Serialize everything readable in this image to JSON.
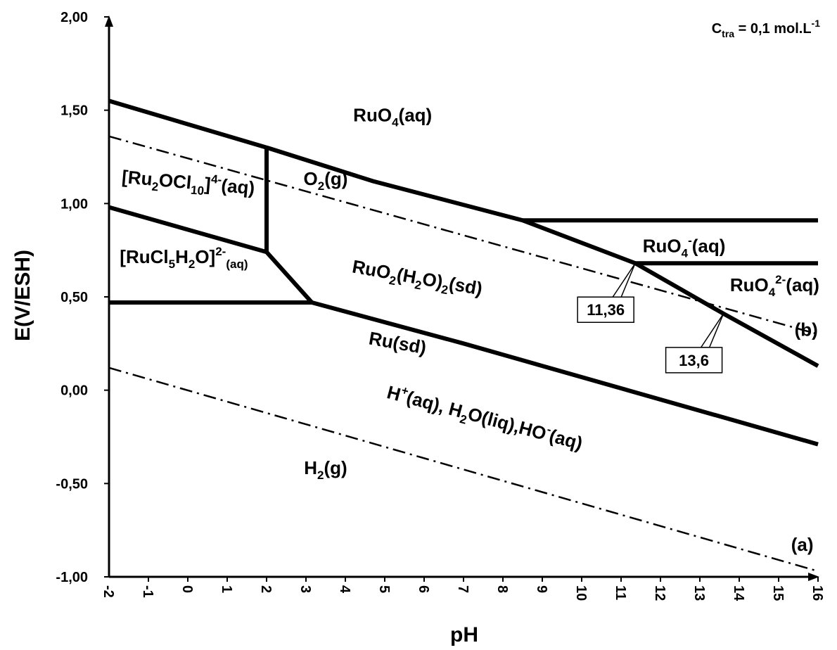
{
  "chart_data": {
    "type": "line",
    "title": "",
    "xlabel": "pH",
    "ylabel": "E(V/ESH)",
    "xlim": [
      -2,
      16
    ],
    "ylim": [
      -1.0,
      2.0
    ],
    "x_ticks": [
      "-2",
      "-1",
      "0",
      "1",
      "2",
      "3",
      "4",
      "5",
      "6",
      "7",
      "8",
      "9",
      "10",
      "11",
      "12",
      "13",
      "14",
      "15",
      "16"
    ],
    "y_ticks": [
      "-1,00",
      "-0,50",
      "0,00",
      "0,50",
      "1,00",
      "1,50",
      "2,00"
    ],
    "annotation": {
      "C": "C",
      "sub": "tra",
      "rest": " = 0,1 mol.L",
      "sup": "-1"
    },
    "series": [
      {
        "style": "solid",
        "points": [
          [
            -2,
            1.55
          ],
          [
            2,
            1.3
          ],
          [
            4.7,
            1.12
          ],
          [
            8.5,
            0.91
          ],
          [
            11.36,
            0.68
          ],
          [
            13.6,
            0.41
          ],
          [
            16,
            0.13
          ]
        ]
      },
      {
        "style": "solid",
        "points": [
          [
            8.5,
            0.91
          ],
          [
            16,
            0.91
          ]
        ]
      },
      {
        "style": "solid",
        "points": [
          [
            11.36,
            0.68
          ],
          [
            16,
            0.68
          ]
        ]
      },
      {
        "style": "solid",
        "points": [
          [
            2,
            1.3
          ],
          [
            2,
            0.74
          ]
        ]
      },
      {
        "style": "solid",
        "points": [
          [
            -2,
            0.98
          ],
          [
            2,
            0.74
          ],
          [
            3.15,
            0.47
          ]
        ]
      },
      {
        "style": "solid",
        "points": [
          [
            -2,
            0.47
          ],
          [
            3.15,
            0.47
          ]
        ]
      },
      {
        "style": "solid",
        "points": [
          [
            3.15,
            0.47
          ],
          [
            7,
            0.25
          ],
          [
            16,
            -0.29
          ]
        ]
      },
      {
        "style": "dashdot",
        "name": "(b)",
        "points": [
          [
            -2,
            1.36
          ],
          [
            16,
            0.3
          ]
        ]
      },
      {
        "style": "dashdot",
        "name": "(a)",
        "points": [
          [
            -2,
            0.12
          ],
          [
            16,
            -0.97
          ]
        ]
      }
    ],
    "callouts": [
      {
        "label": "11,36",
        "x": 11.36,
        "y": 0.68
      },
      {
        "label": "13,6",
        "x": 13.6,
        "y": 0.41
      }
    ],
    "region_labels": [
      {
        "parts": [
          [
            "RuO",
            ""
          ],
          [
            "4",
            "sub"
          ],
          [
            "(aq)",
            ""
          ]
        ],
        "x": 5.2,
        "y": 1.44
      },
      {
        "parts": [
          [
            "O",
            ""
          ],
          [
            "2",
            "sub"
          ],
          [
            "(g)",
            ""
          ]
        ],
        "x": 3.5,
        "y": 1.1
      },
      {
        "parts": [
          [
            "[Ru",
            ""
          ],
          [
            "2",
            "sub"
          ],
          [
            "OCl",
            ""
          ],
          [
            "10",
            "sub"
          ],
          [
            "]",
            ""
          ],
          [
            "4-",
            "sup"
          ],
          [
            "(aq)",
            ""
          ]
        ],
        "x": 0.0,
        "y": 1.08,
        "rotate": 5
      },
      {
        "parts": [
          [
            "[RuCl",
            ""
          ],
          [
            "5",
            "sub"
          ],
          [
            "H",
            ""
          ],
          [
            "2",
            "sub"
          ],
          [
            "O]",
            ""
          ],
          [
            "2-",
            "sup"
          ],
          [
            "(aq)",
            "sub"
          ]
        ],
        "x": -0.1,
        "y": 0.68
      },
      {
        "parts": [
          [
            "RuO",
            ""
          ],
          [
            "2",
            "sub"
          ],
          [
            "(H",
            ""
          ],
          [
            "2",
            "sub"
          ],
          [
            "O)",
            ""
          ],
          [
            "2",
            "sub"
          ],
          [
            "(sd)",
            ""
          ]
        ],
        "x": 5.8,
        "y": 0.57,
        "rotate": 10
      },
      {
        "parts": [
          [
            "Ru(sd)",
            ""
          ]
        ],
        "x": 5.3,
        "y": 0.22,
        "rotate": 10
      },
      {
        "parts": [
          [
            "H",
            ""
          ],
          [
            "+",
            "sup"
          ],
          [
            "(aq), H",
            ""
          ],
          [
            "2",
            "sub"
          ],
          [
            "O(liq),HO",
            ""
          ],
          [
            "-",
            "sup"
          ],
          [
            "(aq)",
            ""
          ]
        ],
        "x": 7.5,
        "y": -0.18,
        "rotate": 15
      },
      {
        "parts": [
          [
            "H",
            ""
          ],
          [
            "2",
            "sub"
          ],
          [
            "(g)",
            ""
          ]
        ],
        "x": 3.5,
        "y": -0.45
      },
      {
        "parts": [
          [
            "RuO",
            ""
          ],
          [
            "4",
            "sub"
          ],
          [
            "-",
            "sup"
          ],
          [
            "(aq)",
            ""
          ]
        ],
        "x": 12.6,
        "y": 0.74
      },
      {
        "parts": [
          [
            "RuO",
            ""
          ],
          [
            "4",
            "sub"
          ],
          [
            "2-",
            "sup"
          ],
          [
            "(aq)",
            ""
          ]
        ],
        "x": 14.9,
        "y": 0.53
      },
      {
        "parts": [
          [
            "(b)",
            ""
          ]
        ],
        "x": 15.7,
        "y": 0.29
      },
      {
        "parts": [
          [
            "(a)",
            ""
          ]
        ],
        "x": 15.6,
        "y": -0.86
      }
    ]
  }
}
